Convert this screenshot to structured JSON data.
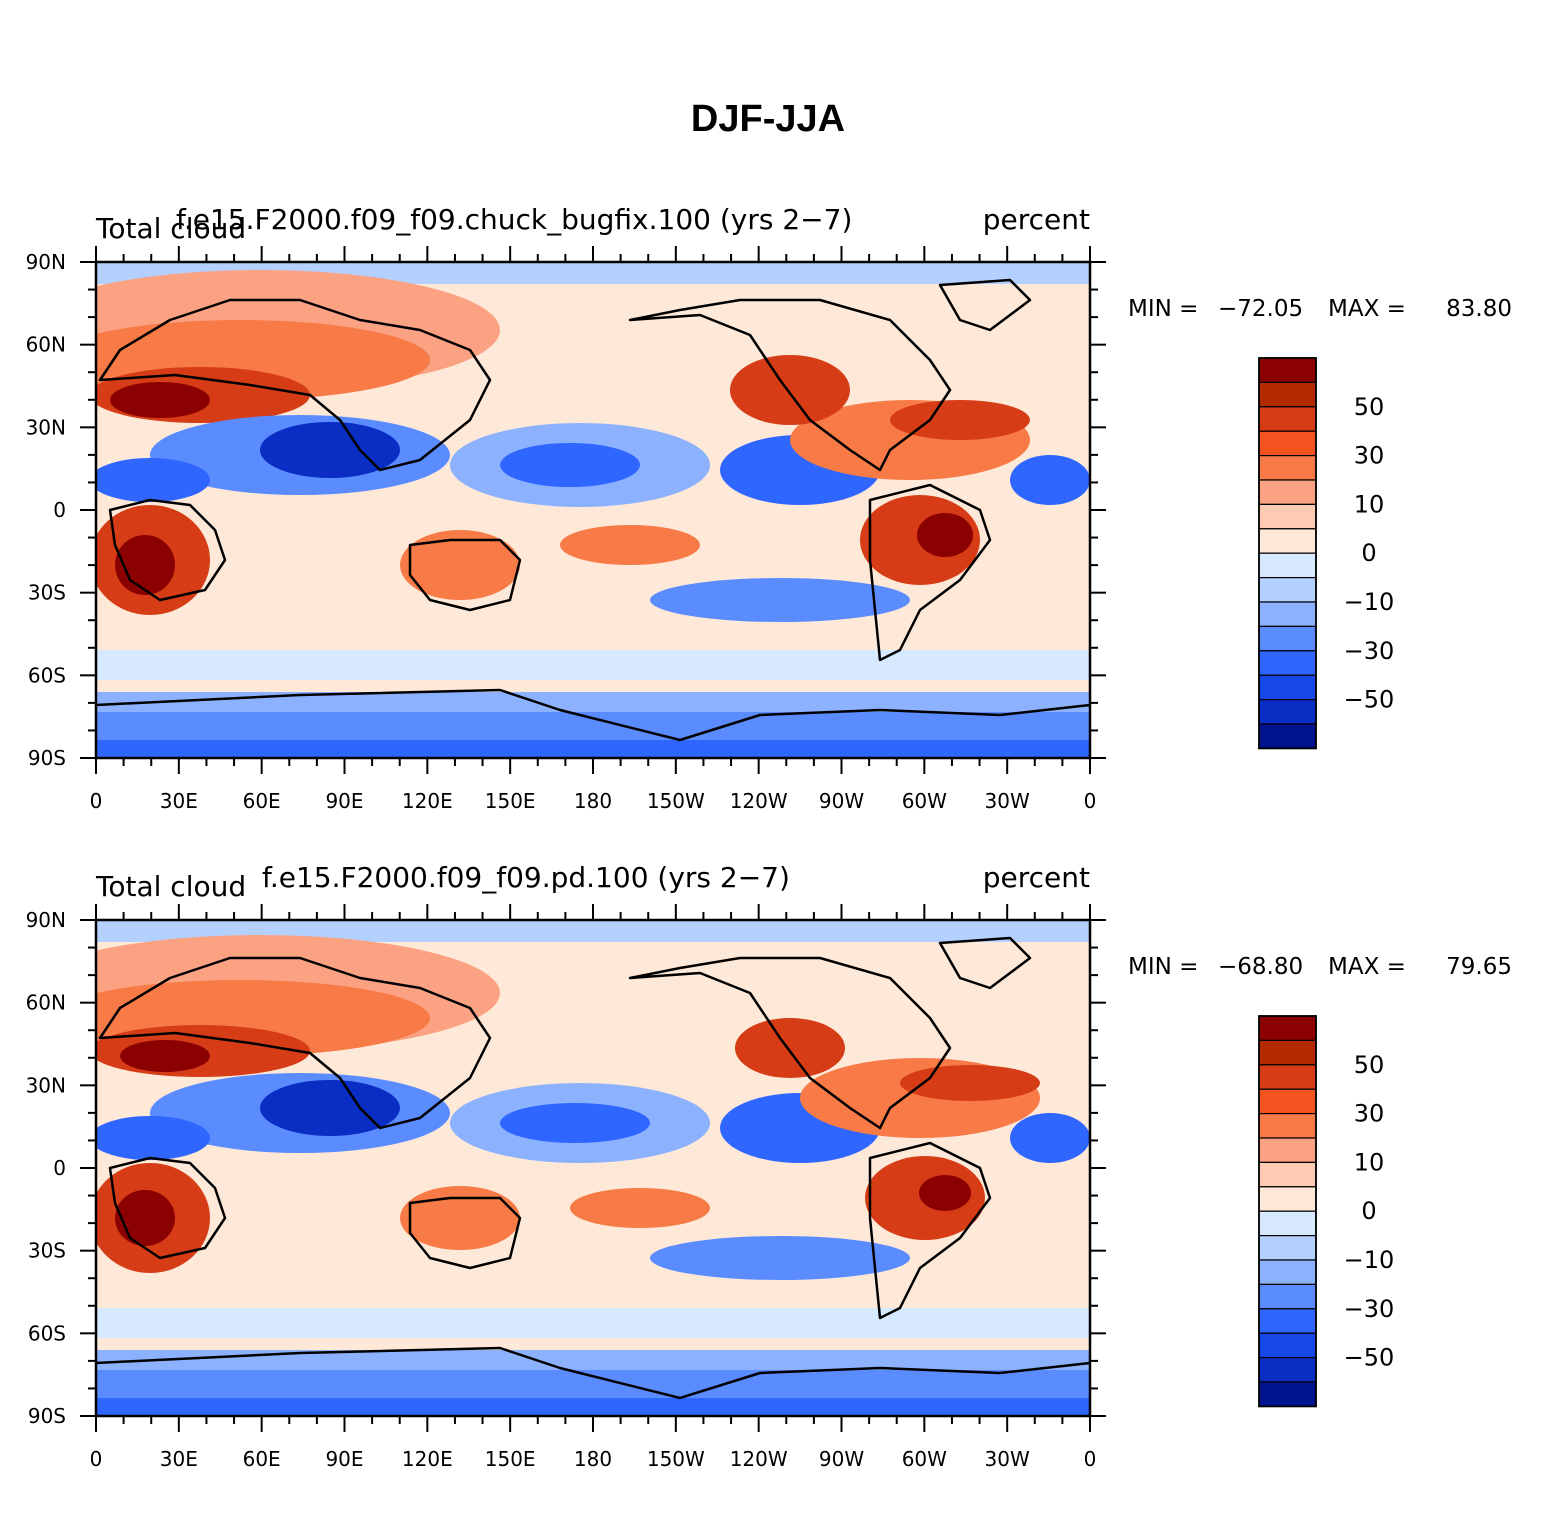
{
  "figure": {
    "title": "DJF-JJA"
  },
  "panels": [
    {
      "variable": "Total cloud",
      "case": "f.e15.F2000.f09_f09.chuck_bugfix.100 (yrs 2−7)",
      "units": "percent",
      "min_label": "MIN =",
      "min_value": "−72.05",
      "max_label": "MAX =",
      "max_value": "83.80"
    },
    {
      "variable": "Total cloud",
      "case": "f.e15.F2000.f09_f09.pd.100 (yrs 2−7)",
      "units": "percent",
      "min_label": "MIN =",
      "min_value": "−68.80",
      "max_label": "MAX =",
      "max_value": "79.65"
    }
  ],
  "axes": {
    "lat_labels": [
      "90N",
      "60N",
      "30N",
      "0",
      "30S",
      "60S",
      "90S"
    ],
    "lon_labels": [
      "0",
      "30E",
      "60E",
      "90E",
      "120E",
      "150E",
      "180",
      "150W",
      "120W",
      "90W",
      "60W",
      "30W",
      "0"
    ]
  },
  "colorbar": {
    "colors": [
      "#8b0000",
      "#b32a00",
      "#d63c16",
      "#f2531f",
      "#f77a47",
      "#fba283",
      "#fdcbb1",
      "#fee8d8",
      "#d6e9ff",
      "#b4d0ff",
      "#8cb2ff",
      "#5a8cff",
      "#2f66ff",
      "#1548e6",
      "#0a2ec4",
      "#00148f"
    ],
    "labels": [
      "50",
      "30",
      "10",
      "0",
      "−10",
      "−30",
      "−50"
    ]
  }
}
